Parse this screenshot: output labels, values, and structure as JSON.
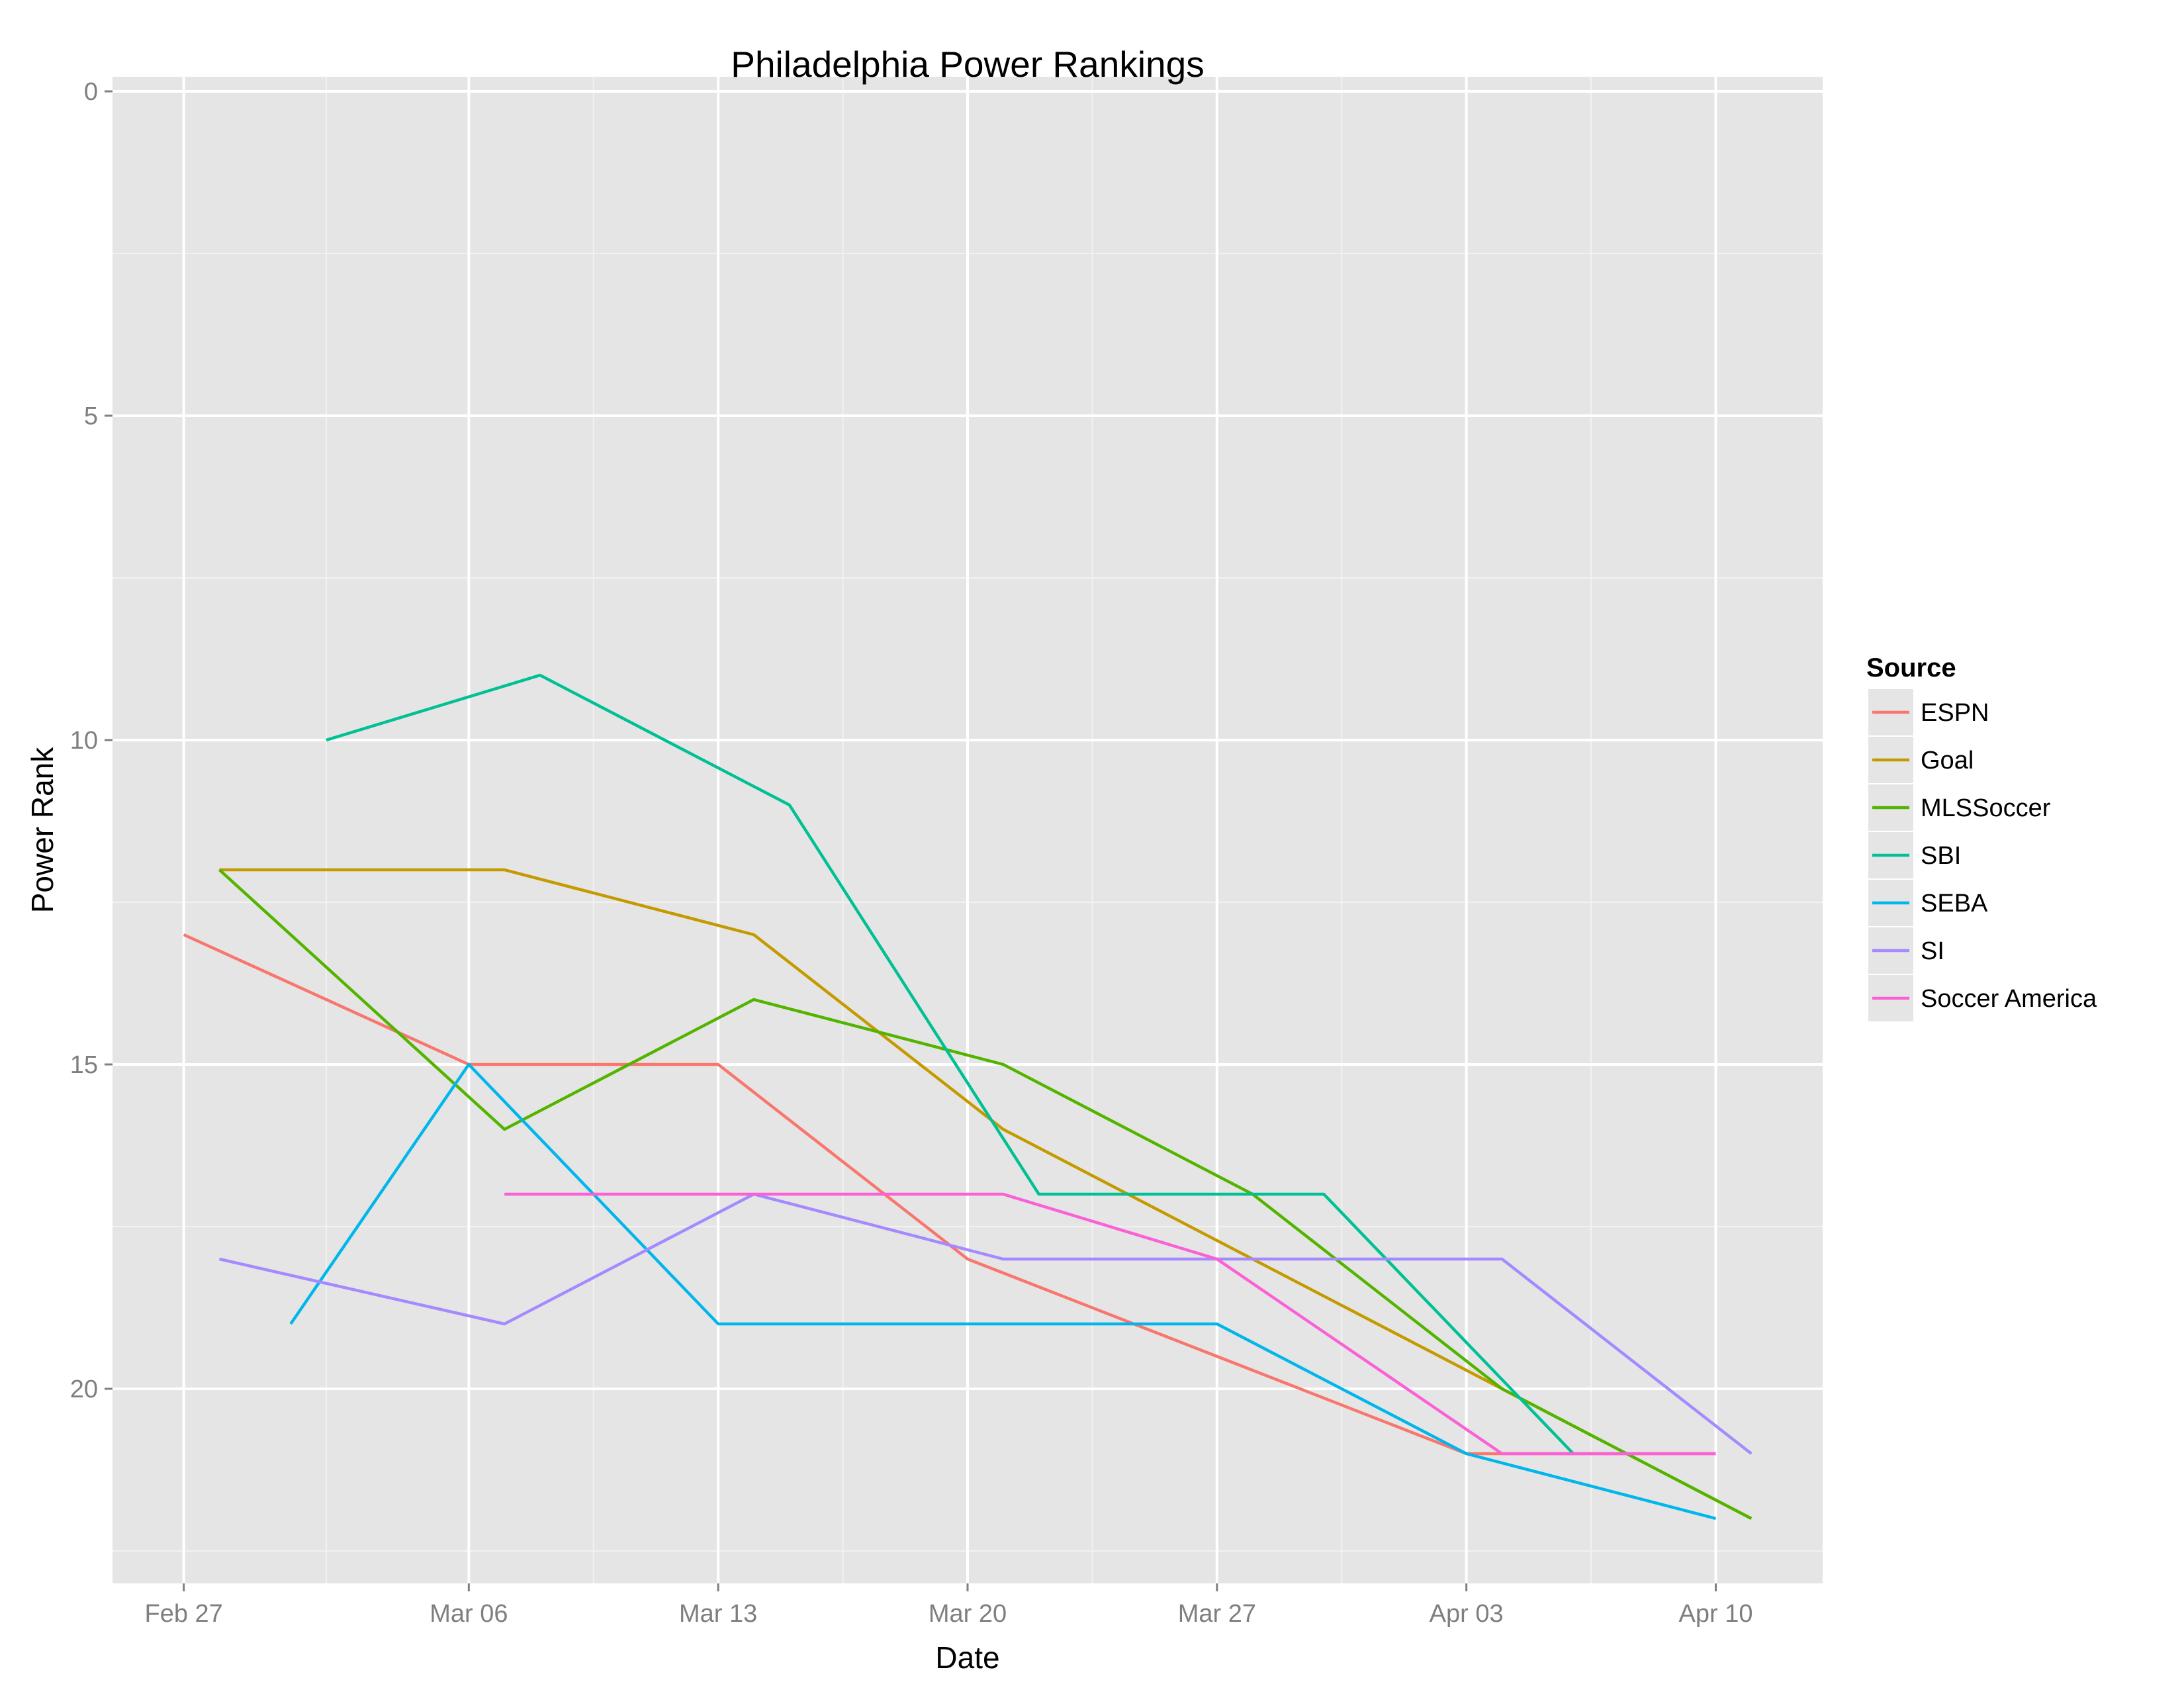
{
  "chart_data": {
    "type": "line",
    "title": "Philadelphia Power Rankings",
    "xlabel": "Date",
    "ylabel": "Power Rank",
    "x_axis": {
      "kind": "date",
      "range": [
        "2016-02-25",
        "2016-04-13"
      ],
      "ticks": [
        {
          "date": "2016-02-27",
          "label": "Feb 27"
        },
        {
          "date": "2016-03-06",
          "label": "Mar 06"
        },
        {
          "date": "2016-03-13",
          "label": "Mar 13"
        },
        {
          "date": "2016-03-20",
          "label": "Mar 20"
        },
        {
          "date": "2016-03-27",
          "label": "Mar 27"
        },
        {
          "date": "2016-04-03",
          "label": "Apr 03"
        },
        {
          "date": "2016-04-10",
          "label": "Apr 10"
        }
      ]
    },
    "y_axis": {
      "reversed": true,
      "range": [
        0,
        23
      ],
      "ticks": [
        0,
        5,
        10,
        15,
        20
      ]
    },
    "grid": true,
    "legend": {
      "title": "Source",
      "placement": "right"
    },
    "series": [
      {
        "name": "ESPN",
        "color": "#F8766D",
        "points": [
          [
            "2016-02-27",
            13
          ],
          [
            "2016-03-06",
            15
          ],
          [
            "2016-03-13",
            15
          ],
          [
            "2016-03-20",
            18
          ],
          [
            "2016-03-27",
            19.5
          ],
          [
            "2016-04-03",
            21
          ],
          [
            "2016-04-10",
            21
          ]
        ]
      },
      {
        "name": "Goal",
        "color": "#C49A00",
        "points": [
          [
            "2016-02-28",
            12
          ],
          [
            "2016-03-07",
            12
          ],
          [
            "2016-03-14",
            13
          ],
          [
            "2016-03-21",
            16
          ],
          [
            "2016-03-28",
            18
          ],
          [
            "2016-04-04",
            20
          ],
          [
            "2016-04-11",
            22
          ]
        ]
      },
      {
        "name": "MLSSoccer",
        "color": "#53B400",
        "points": [
          [
            "2016-02-28",
            12
          ],
          [
            "2016-03-07",
            16
          ],
          [
            "2016-03-14",
            14
          ],
          [
            "2016-03-21",
            15
          ],
          [
            "2016-03-28",
            17
          ],
          [
            "2016-04-04",
            20
          ],
          [
            "2016-04-11",
            22
          ]
        ]
      },
      {
        "name": "SBI",
        "color": "#00C094",
        "points": [
          [
            "2016-03-02",
            10
          ],
          [
            "2016-03-08",
            9
          ],
          [
            "2016-03-15",
            11
          ],
          [
            "2016-03-22",
            17
          ],
          [
            "2016-03-30",
            17
          ],
          [
            "2016-04-06",
            21
          ]
        ]
      },
      {
        "name": "SEBA",
        "color": "#00B6EB",
        "points": [
          [
            "2016-03-01",
            19
          ],
          [
            "2016-03-06",
            15
          ],
          [
            "2016-03-13",
            19
          ],
          [
            "2016-03-20",
            19
          ],
          [
            "2016-03-27",
            19
          ],
          [
            "2016-04-03",
            21
          ],
          [
            "2016-04-10",
            22
          ]
        ]
      },
      {
        "name": "SI",
        "color": "#A58AFF",
        "points": [
          [
            "2016-02-28",
            18
          ],
          [
            "2016-03-07",
            19
          ],
          [
            "2016-03-14",
            17
          ],
          [
            "2016-03-21",
            18
          ],
          [
            "2016-03-28",
            18
          ],
          [
            "2016-04-04",
            18
          ],
          [
            "2016-04-11",
            21
          ]
        ]
      },
      {
        "name": "Soccer America",
        "color": "#FB61D7",
        "points": [
          [
            "2016-03-07",
            17
          ],
          [
            "2016-03-14",
            17
          ],
          [
            "2016-03-21",
            17
          ],
          [
            "2016-03-27",
            18
          ],
          [
            "2016-04-04",
            21
          ],
          [
            "2016-04-10",
            21
          ]
        ]
      }
    ]
  },
  "colors": {
    "panel_background": "#E5E5E5",
    "grid_major": "#FFFFFF",
    "grid_minor": "#F2F2F2",
    "tick_text": "#7F7F7F"
  }
}
